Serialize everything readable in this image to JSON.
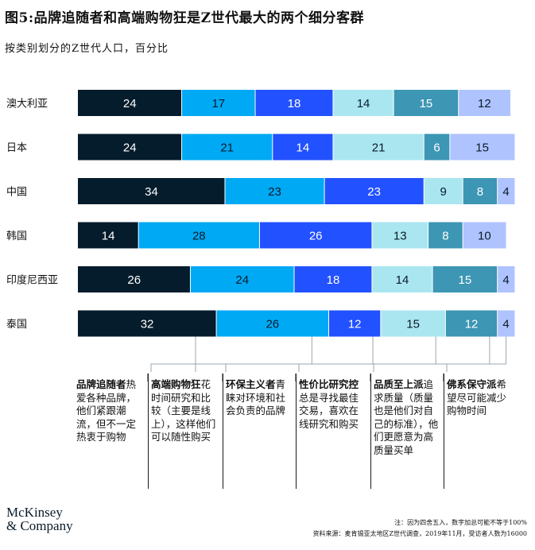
{
  "header": {
    "title": "图5:品牌追随者和高端购物狂是Z世代最大的两个细分客群",
    "subtitle": "按类别划分的Z世代人口，百分比"
  },
  "chart_data": {
    "type": "bar",
    "orientation": "horizontal",
    "stacked": true,
    "xlim": [
      0,
      100
    ],
    "grid": false,
    "legend": "none",
    "categories": [
      "澳大利亚",
      "日本",
      "中国",
      "韩国",
      "印度尼西亚",
      "泰国"
    ],
    "series": [
      {
        "name": "品牌追随者",
        "color": "#051c2c",
        "label_color": "#ffffff",
        "values": [
          24,
          24,
          34,
          14,
          26,
          32
        ]
      },
      {
        "name": "高端购物狂",
        "color": "#00a9f4",
        "label_color": "#0a1b2a",
        "values": [
          17,
          21,
          23,
          28,
          24,
          26
        ]
      },
      {
        "name": "环保主义者",
        "color": "#2251ff",
        "label_color": "#ffffff",
        "values": [
          18,
          14,
          23,
          26,
          18,
          12
        ]
      },
      {
        "name": "性价比研究控",
        "color": "#aae6f0",
        "label_color": "#0a1b2a",
        "values": [
          14,
          21,
          9,
          13,
          14,
          15
        ]
      },
      {
        "name": "品质至上派",
        "color": "#3c96b4",
        "label_color": "#ffffff",
        "values": [
          15,
          6,
          8,
          8,
          15,
          12
        ]
      },
      {
        "name": "佛系保守派",
        "color": "#afc3ff",
        "label_color": "#0a1b2a",
        "values": [
          12,
          15,
          4,
          10,
          4,
          4
        ]
      }
    ]
  },
  "annotations": [
    {
      "title": "品牌追随者",
      "body": "热爱各种品牌，他们紧跟潮流，但不一定热衷于购物"
    },
    {
      "title": "高端购物狂",
      "body": "花时间研究和比较（主要是线上），这样他们可以随性购买"
    },
    {
      "title": "环保主义者",
      "body": "青睐对环境和社会负责的品牌"
    },
    {
      "title": "性价比研究控",
      "body": "总是寻找最佳交易，喜欢在线研究和购买"
    },
    {
      "title": "品质至上派",
      "body": "追求质量（质量也是他们对自己的标准），他们更愿意为高质量买单"
    },
    {
      "title": "佛系保守派",
      "body": "希望尽可能减少购物时间"
    }
  ],
  "footer": {
    "logo_line1": "McKinsey",
    "logo_line2": "& Company",
    "note": "注：因为四舍五入，数字加总可能不等于100%",
    "source": "资料来源：麦肯锡亚太地区Z世代调查，2019年11月，受访者人数为16000"
  }
}
